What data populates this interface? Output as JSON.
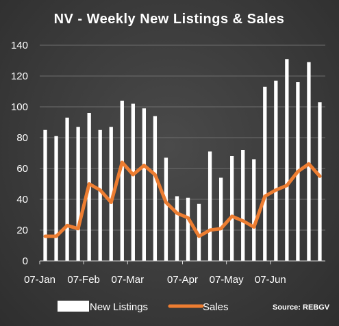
{
  "chart_data": {
    "type": "bar",
    "title": "NV - Weekly New Listings & Sales",
    "xlabel": "",
    "ylabel": "",
    "ylim": [
      0,
      140
    ],
    "y_ticks": [
      "0",
      "20",
      "40",
      "60",
      "80",
      "100",
      "120",
      "140"
    ],
    "x_tick_labels": [
      {
        "label": "07-Jan",
        "week_index": 0
      },
      {
        "label": "07-Feb",
        "week_index": 4
      },
      {
        "label": "07-Mar",
        "week_index": 8
      },
      {
        "label": "07-Apr",
        "week_index": 13
      },
      {
        "label": "07-May",
        "week_index": 17
      },
      {
        "label": "07-Jun",
        "week_index": 21
      }
    ],
    "grid": true,
    "legend_position": "bottom",
    "series": [
      {
        "name": "New Listings",
        "type": "bar",
        "color": "#ffffff",
        "values": [
          85,
          81,
          93,
          87,
          96,
          85,
          87,
          104,
          102,
          99,
          94,
          67,
          42,
          41,
          37,
          71,
          54,
          68,
          72,
          66,
          113,
          117,
          131,
          116,
          129,
          103
        ]
      },
      {
        "name": "Sales",
        "type": "line",
        "color": "#ed7d31",
        "values": [
          16,
          16,
          23,
          21,
          50,
          46,
          38,
          64,
          56,
          62,
          56,
          38,
          31,
          28,
          16,
          20,
          21,
          29,
          26,
          22,
          42,
          46,
          49,
          58,
          63,
          55
        ]
      }
    ],
    "source": "Source: REBGV"
  }
}
